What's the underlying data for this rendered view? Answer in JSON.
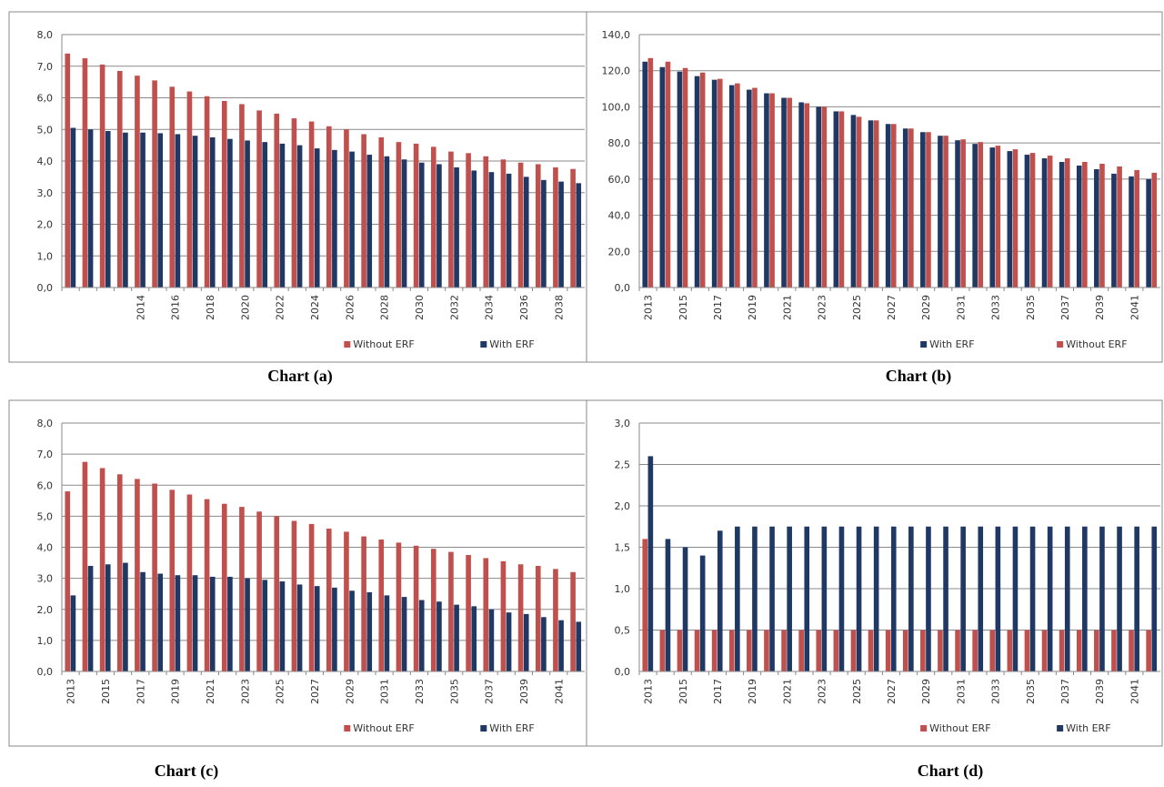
{
  "chart_data": [
    {
      "type": "bar",
      "caption": "Chart (a)",
      "categories": [
        null,
        null,
        null,
        null,
        "2014",
        null,
        "2016",
        null,
        "2018",
        null,
        "2020",
        null,
        "2022",
        null,
        "2024",
        null,
        "2026",
        null,
        "2028",
        null,
        "2030",
        null,
        "2032",
        null,
        "2034",
        null,
        "2036",
        null,
        "2038",
        null
      ],
      "series": [
        {
          "name": "Without ERF",
          "color": "#c0504d",
          "values": [
            7.4,
            7.25,
            7.05,
            6.85,
            6.7,
            6.55,
            6.35,
            6.2,
            6.05,
            5.9,
            5.8,
            5.6,
            5.5,
            5.35,
            5.25,
            5.1,
            5.0,
            4.85,
            4.75,
            4.6,
            4.55,
            4.45,
            4.3,
            4.25,
            4.15,
            4.05,
            3.95,
            3.9,
            3.8,
            3.75
          ]
        },
        {
          "name": "With ERF",
          "color": "#1f3864",
          "values": [
            5.05,
            5.0,
            4.95,
            4.9,
            4.9,
            4.88,
            4.85,
            4.8,
            4.75,
            4.7,
            4.65,
            4.6,
            4.55,
            4.5,
            4.4,
            4.35,
            4.3,
            4.2,
            4.15,
            4.05,
            3.95,
            3.9,
            3.8,
            3.7,
            3.65,
            3.6,
            3.5,
            3.4,
            3.35,
            3.3
          ]
        }
      ],
      "ylim": [
        0,
        8
      ],
      "yticks": [
        {
          "value": 0,
          "label": "0,0"
        },
        {
          "value": 1,
          "label": "1,0"
        },
        {
          "value": 2,
          "label": "2,0"
        },
        {
          "value": 3,
          "label": "3,0"
        },
        {
          "value": 4,
          "label": "4,0"
        },
        {
          "value": 5,
          "label": "5,0"
        },
        {
          "value": 6,
          "label": "6,0"
        },
        {
          "value": 7,
          "label": "7,0"
        },
        {
          "value": 8,
          "label": "8,0"
        }
      ],
      "grid": true
    },
    {
      "type": "bar",
      "caption": "Chart (b)",
      "categories": [
        "2013",
        null,
        "2015",
        null,
        "2017",
        null,
        "2019",
        null,
        "2021",
        null,
        "2023",
        null,
        "2025",
        null,
        "2027",
        null,
        "2029",
        null,
        "2031",
        null,
        "2033",
        null,
        "2035",
        null,
        "2037",
        null,
        "2039",
        null,
        "2041",
        null
      ],
      "series": [
        {
          "name": "With ERF",
          "color": "#1f3864",
          "values": [
            125,
            122,
            119.5,
            117,
            115,
            112,
            109.5,
            107.5,
            105,
            102.5,
            100,
            97.5,
            95.5,
            92.5,
            90.5,
            88,
            86,
            84,
            81.5,
            79.5,
            77.5,
            75.5,
            73.5,
            71.5,
            69.5,
            67.5,
            65.5,
            63,
            61.5,
            60
          ]
        },
        {
          "name": "Without ERF",
          "color": "#c0504d",
          "values": [
            127,
            125,
            121.5,
            119,
            115.5,
            113,
            110.5,
            107.5,
            105,
            102,
            100,
            97.5,
            94.5,
            92.5,
            90.5,
            88,
            86,
            84,
            82,
            80.5,
            78.5,
            76.5,
            74.5,
            73,
            71.5,
            69.5,
            68.5,
            67,
            65,
            63.5
          ]
        }
      ],
      "ylim": [
        0,
        140
      ],
      "yticks": [
        {
          "value": 0,
          "label": "0,0"
        },
        {
          "value": 20,
          "label": "20,0"
        },
        {
          "value": 40,
          "label": "40,0"
        },
        {
          "value": 60,
          "label": "60,0"
        },
        {
          "value": 80,
          "label": "80,0"
        },
        {
          "value": 100,
          "label": "100,0"
        },
        {
          "value": 120,
          "label": "120,0"
        },
        {
          "value": 140,
          "label": "140,0"
        }
      ],
      "grid": true
    },
    {
      "type": "bar",
      "caption": "Chart (c)",
      "categories": [
        "2013",
        null,
        "2015",
        null,
        "2017",
        null,
        "2019",
        null,
        "2021",
        null,
        "2023",
        null,
        "2025",
        null,
        "2027",
        null,
        "2029",
        null,
        "2031",
        null,
        "2033",
        null,
        "2035",
        null,
        "2037",
        null,
        "2039",
        null,
        "2041",
        null
      ],
      "series": [
        {
          "name": "Without ERF",
          "color": "#c0504d",
          "values": [
            5.8,
            6.75,
            6.55,
            6.35,
            6.2,
            6.05,
            5.85,
            5.7,
            5.55,
            5.4,
            5.3,
            5.15,
            5.0,
            4.85,
            4.75,
            4.6,
            4.5,
            4.35,
            4.25,
            4.15,
            4.05,
            3.95,
            3.85,
            3.75,
            3.65,
            3.55,
            3.45,
            3.4,
            3.3,
            3.2
          ]
        },
        {
          "name": "With ERF",
          "color": "#1f3864",
          "values": [
            2.45,
            3.4,
            3.45,
            3.5,
            3.2,
            3.15,
            3.1,
            3.1,
            3.05,
            3.05,
            3.0,
            2.95,
            2.9,
            2.8,
            2.75,
            2.7,
            2.6,
            2.55,
            2.45,
            2.4,
            2.3,
            2.25,
            2.15,
            2.1,
            2.0,
            1.9,
            1.85,
            1.75,
            1.65,
            1.6
          ]
        }
      ],
      "ylim": [
        0,
        8
      ],
      "yticks": [
        {
          "value": 0,
          "label": "0,0"
        },
        {
          "value": 1,
          "label": "1,0"
        },
        {
          "value": 2,
          "label": "2,0"
        },
        {
          "value": 3,
          "label": "3,0"
        },
        {
          "value": 4,
          "label": "4,0"
        },
        {
          "value": 5,
          "label": "5,0"
        },
        {
          "value": 6,
          "label": "6,0"
        },
        {
          "value": 7,
          "label": "7,0"
        },
        {
          "value": 8,
          "label": "8,0"
        }
      ],
      "grid": true
    },
    {
      "type": "bar",
      "caption": "Chart (d)",
      "categories": [
        "2013",
        null,
        "2015",
        null,
        "2017",
        null,
        "2019",
        null,
        "2021",
        null,
        "2023",
        null,
        "2025",
        null,
        "2027",
        null,
        "2029",
        null,
        "2031",
        null,
        "2033",
        null,
        "2035",
        null,
        "2037",
        null,
        "2039",
        null,
        "2041",
        null
      ],
      "series": [
        {
          "name": "Without ERF",
          "color": "#c0504d",
          "values": [
            1.6,
            0.5,
            0.5,
            0.5,
            0.5,
            0.5,
            0.5,
            0.5,
            0.5,
            0.5,
            0.5,
            0.5,
            0.5,
            0.5,
            0.5,
            0.5,
            0.5,
            0.5,
            0.5,
            0.5,
            0.5,
            0.5,
            0.5,
            0.5,
            0.5,
            0.5,
            0.5,
            0.5,
            0.5,
            0.5
          ]
        },
        {
          "name": "With ERF",
          "color": "#1f3864",
          "values": [
            2.6,
            1.6,
            1.5,
            1.4,
            1.7,
            1.75,
            1.75,
            1.75,
            1.75,
            1.75,
            1.75,
            1.75,
            1.75,
            1.75,
            1.75,
            1.75,
            1.75,
            1.75,
            1.75,
            1.75,
            1.75,
            1.75,
            1.75,
            1.75,
            1.75,
            1.75,
            1.75,
            1.75,
            1.75,
            1.75
          ]
        }
      ],
      "ylim": [
        0,
        3
      ],
      "yticks": [
        {
          "value": 0,
          "label": "0,0"
        },
        {
          "value": 0.5,
          "label": "0,5"
        },
        {
          "value": 1,
          "label": "1,0"
        },
        {
          "value": 1.5,
          "label": "1,5"
        },
        {
          "value": 2,
          "label": "2,0"
        },
        {
          "value": 2.5,
          "label": "2,5"
        },
        {
          "value": 3,
          "label": "3,0"
        }
      ],
      "grid": true
    }
  ]
}
